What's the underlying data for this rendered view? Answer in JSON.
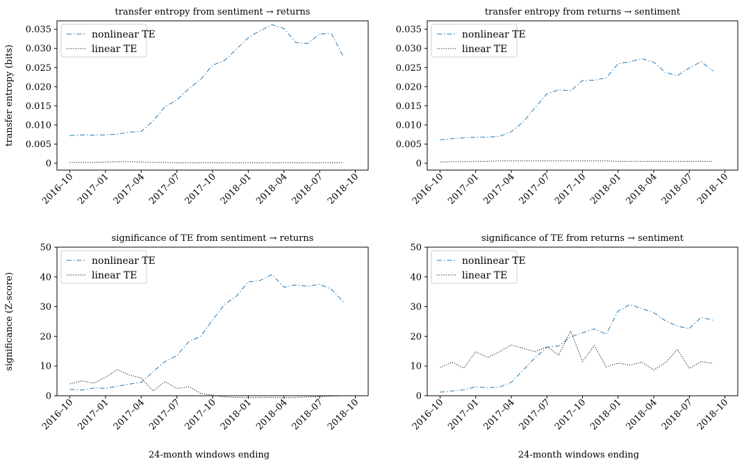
{
  "figure": {
    "xlabel_left": "24-month windows ending",
    "xlabel_right": "24-month windows ending"
  },
  "chart_data": [
    {
      "type": "line",
      "title": "transfer entropy from sentiment → returns",
      "xlabel": "",
      "ylabel": "transfer entropy (bits)",
      "x": [
        "2016-10",
        "2016-11",
        "2016-12",
        "2017-01",
        "2017-02",
        "2017-03",
        "2017-04",
        "2017-05",
        "2017-06",
        "2017-07",
        "2017-08",
        "2017-09",
        "2017-10",
        "2017-11",
        "2017-12",
        "2018-01",
        "2018-02",
        "2018-03",
        "2018-04",
        "2018-05",
        "2018-06",
        "2018-07",
        "2018-08",
        "2018-09"
      ],
      "xticks": [
        "2016–10",
        "2017–01",
        "2017–04",
        "2017–07",
        "2017–10",
        "2018–01",
        "2018–04",
        "2018–07",
        "2018–10"
      ],
      "yticks": [
        "0",
        "0.005",
        "0.010",
        "0.015",
        "0.020",
        "0.025",
        "0.030",
        "0.035"
      ],
      "ylim": [
        -0.0018,
        0.0372
      ],
      "legend": "upper left",
      "series": [
        {
          "name": "nonlinear TE",
          "color": "#1f77b4",
          "style": "dashdot",
          "values": [
            0.0072,
            0.0074,
            0.0073,
            0.0074,
            0.0076,
            0.0081,
            0.0083,
            0.011,
            0.0148,
            0.0165,
            0.0195,
            0.0219,
            0.0256,
            0.0268,
            0.0298,
            0.0328,
            0.0346,
            0.0362,
            0.0352,
            0.0315,
            0.0313,
            0.0338,
            0.0338,
            0.0278
          ]
        },
        {
          "name": "linear TE",
          "color": "#000000",
          "style": "dotted",
          "values": [
            0.0002,
            0.0002,
            0.0002,
            0.0003,
            0.0004,
            0.0004,
            0.0003,
            0.0002,
            0.0002,
            0.0001,
            0.0001,
            0.0001,
            0.0001,
            0.0001,
            0.0001,
            0.0001,
            0.0001,
            0.0001,
            0.0001,
            0.0001,
            0.0001,
            0.0001,
            0.0001,
            0.0001
          ]
        }
      ]
    },
    {
      "type": "line",
      "title": "transfer entropy from returns → sentiment",
      "xlabel": "",
      "ylabel": "",
      "x": [
        "2016-10",
        "2016-11",
        "2016-12",
        "2017-01",
        "2017-02",
        "2017-03",
        "2017-04",
        "2017-05",
        "2017-06",
        "2017-07",
        "2017-08",
        "2017-09",
        "2017-10",
        "2017-11",
        "2017-12",
        "2018-01",
        "2018-02",
        "2018-03",
        "2018-04",
        "2018-05",
        "2018-06",
        "2018-07",
        "2018-08",
        "2018-09"
      ],
      "xticks": [
        "2016–10",
        "2017–01",
        "2017–04",
        "2017–07",
        "2017–10",
        "2018–01",
        "2018–04",
        "2018–07",
        "2018–10"
      ],
      "yticks": [
        "0",
        "0.005",
        "0.010",
        "0.015",
        "0.020",
        "0.025",
        "0.030",
        "0.035"
      ],
      "ylim": [
        -0.0018,
        0.0372
      ],
      "legend": "upper left",
      "series": [
        {
          "name": "nonlinear TE",
          "color": "#1f77b4",
          "style": "dashdot",
          "values": [
            0.0061,
            0.0064,
            0.0066,
            0.0068,
            0.0068,
            0.007,
            0.0082,
            0.0108,
            0.0145,
            0.0181,
            0.0192,
            0.0189,
            0.0216,
            0.0217,
            0.0223,
            0.026,
            0.0265,
            0.0273,
            0.0264,
            0.0237,
            0.0229,
            0.0249,
            0.0265,
            0.0241
          ]
        },
        {
          "name": "linear TE",
          "color": "#000000",
          "style": "dotted",
          "values": [
            0.0003,
            0.0004,
            0.0004,
            0.0005,
            0.0005,
            0.0006,
            0.0006,
            0.0006,
            0.0006,
            0.0006,
            0.0006,
            0.0006,
            0.0006,
            0.0006,
            0.0006,
            0.0005,
            0.0005,
            0.0005,
            0.0005,
            0.0005,
            0.0005,
            0.0005,
            0.0005,
            0.0005
          ]
        }
      ]
    },
    {
      "type": "line",
      "title": "significance of TE from sentiment → returns",
      "xlabel": "24-month windows ending",
      "ylabel": "significance (Z-score)",
      "x": [
        "2016-10",
        "2016-11",
        "2016-12",
        "2017-01",
        "2017-02",
        "2017-03",
        "2017-04",
        "2017-05",
        "2017-06",
        "2017-07",
        "2017-08",
        "2017-09",
        "2017-10",
        "2017-11",
        "2017-12",
        "2018-01",
        "2018-02",
        "2018-03",
        "2018-04",
        "2018-05",
        "2018-06",
        "2018-07",
        "2018-08",
        "2018-09"
      ],
      "xticks": [
        "2016–10",
        "2017–01",
        "2017–04",
        "2017–07",
        "2017–10",
        "2018–01",
        "2018–04",
        "2018–07",
        "2018–10"
      ],
      "yticks": [
        "0",
        "10",
        "20",
        "30",
        "40",
        "50"
      ],
      "ylim": [
        0,
        50
      ],
      "legend": "upper left",
      "series": [
        {
          "name": "nonlinear TE",
          "color": "#1f77b4",
          "style": "dashdot",
          "values": [
            2.2,
            1.9,
            2.6,
            2.5,
            3.2,
            3.9,
            4.5,
            8.1,
            11.5,
            13.5,
            18.2,
            20.0,
            25.5,
            30.7,
            33.5,
            38.3,
            38.8,
            40.8,
            36.5,
            37.3,
            36.8,
            37.5,
            35.8,
            31.6
          ]
        },
        {
          "name": "linear TE",
          "color": "#000000",
          "style": "dotted",
          "values": [
            4.0,
            5.0,
            4.2,
            6.2,
            8.8,
            7.0,
            6.0,
            1.6,
            4.8,
            2.4,
            3.1,
            0.8,
            0.2,
            -0.4,
            -0.6,
            -0.7,
            -0.6,
            -0.6,
            -0.7,
            -0.6,
            -0.4,
            -0.3,
            -0.1,
            0.0
          ]
        }
      ]
    },
    {
      "type": "line",
      "title": "significance of TE from returns → sentiment",
      "xlabel": "24-month windows ending",
      "ylabel": "",
      "x": [
        "2016-10",
        "2016-11",
        "2016-12",
        "2017-01",
        "2017-02",
        "2017-03",
        "2017-04",
        "2017-05",
        "2017-06",
        "2017-07",
        "2017-08",
        "2017-09",
        "2017-10",
        "2017-11",
        "2017-12",
        "2018-01",
        "2018-02",
        "2018-03",
        "2018-04",
        "2018-05",
        "2018-06",
        "2018-07",
        "2018-08",
        "2018-09"
      ],
      "xticks": [
        "2016–10",
        "2017–01",
        "2017–04",
        "2017–07",
        "2017–10",
        "2018–01",
        "2018–04",
        "2018–07",
        "2018–10"
      ],
      "yticks": [
        "0",
        "10",
        "20",
        "30",
        "40",
        "50"
      ],
      "ylim": [
        0,
        50
      ],
      "legend": "upper left",
      "series": [
        {
          "name": "nonlinear TE",
          "color": "#1f77b4",
          "style": "dashdot",
          "values": [
            1.2,
            1.6,
            2.0,
            3.0,
            2.7,
            2.9,
            4.5,
            8.6,
            12.8,
            16.3,
            16.8,
            19.8,
            21.2,
            22.5,
            20.7,
            28.5,
            30.7,
            29.3,
            28.0,
            25.2,
            23.4,
            22.6,
            26.4,
            25.4
          ]
        },
        {
          "name": "linear TE",
          "color": "#000000",
          "style": "dotted",
          "values": [
            9.5,
            11.3,
            9.3,
            14.8,
            12.9,
            14.8,
            17.1,
            16.0,
            14.8,
            16.5,
            13.7,
            21.8,
            11.5,
            16.9,
            9.7,
            11.0,
            10.3,
            11.3,
            8.7,
            11.1,
            15.6,
            9.2,
            11.5,
            10.9
          ]
        }
      ]
    }
  ]
}
